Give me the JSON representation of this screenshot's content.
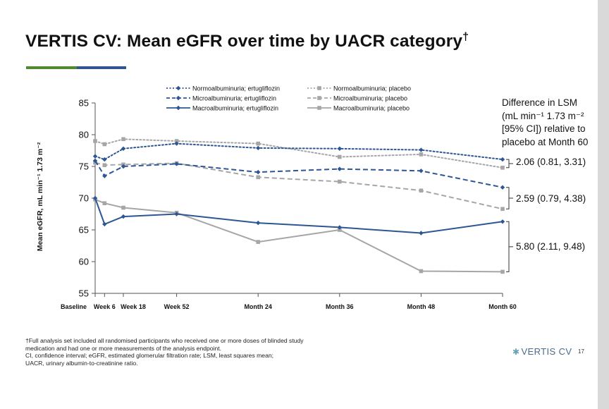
{
  "title": "VERTIS CV: Mean eGFR over time by UACR category",
  "title_mark": "†",
  "chart_data": {
    "type": "line",
    "ylabel": "Mean eGFR, mL min⁻¹ 1.73 m⁻²",
    "xlabel": "",
    "ylim": [
      55,
      85
    ],
    "yticks": [
      55,
      60,
      65,
      70,
      75,
      80,
      85
    ],
    "x_categories": [
      {
        "label": "Baseline",
        "week": 0
      },
      {
        "label": "Week 6",
        "week": 6
      },
      {
        "label": "Week 18",
        "week": 18
      },
      {
        "label": "Week 52",
        "week": 52
      },
      {
        "label": "Month 24",
        "week": 104
      },
      {
        "label": "Month 36",
        "week": 156
      },
      {
        "label": "Month 48",
        "week": 208
      },
      {
        "label": "Month 60",
        "week": 260
      }
    ],
    "series": [
      {
        "name": "Normoalbuminuria; ertugliflozin",
        "style": "dotted",
        "marker": "diamond",
        "color": "#2e5694",
        "values": [
          76.6,
          76.1,
          77.8,
          78.6,
          77.9,
          77.8,
          77.6,
          76.1
        ]
      },
      {
        "name": "Normoalbuminuria; placebo",
        "style": "dotted",
        "marker": "square",
        "color": "#a6a6a6",
        "values": [
          79.0,
          78.5,
          79.3,
          79.0,
          78.6,
          76.5,
          76.9,
          74.8
        ]
      },
      {
        "name": "Microalbuminuria; ertugliflozin",
        "style": "dashed",
        "marker": "diamond",
        "color": "#2e5694",
        "values": [
          75.9,
          73.5,
          75.0,
          75.4,
          74.1,
          74.6,
          74.3,
          71.7
        ]
      },
      {
        "name": "Microalbuminuria; placebo",
        "style": "dashed",
        "marker": "square",
        "color": "#a6a6a6",
        "values": [
          75.6,
          75.2,
          75.3,
          75.5,
          73.3,
          72.6,
          71.2,
          68.3
        ]
      },
      {
        "name": "Macroalbuminuria; ertugliflozin",
        "style": "solid",
        "marker": "diamond",
        "color": "#2e5694",
        "values": [
          70.0,
          65.9,
          67.1,
          67.5,
          66.1,
          65.4,
          64.5,
          66.3
        ]
      },
      {
        "name": "Macroalbuminuria; placebo",
        "style": "solid",
        "marker": "square",
        "color": "#a6a6a6",
        "values": [
          69.8,
          69.2,
          68.5,
          67.7,
          63.1,
          65.0,
          58.5,
          58.4
        ]
      }
    ],
    "legend_position": "top"
  },
  "difference": {
    "title_line1": "Difference in LSM",
    "title_line2": "(mL min⁻¹ 1.73 m⁻²",
    "title_line3": "[95% CI]) relative to",
    "title_line4": "placebo at Month 60",
    "normo": "2.06 (0.81, 3.31)",
    "micro": "2.59 (0.79, 4.38)",
    "macro": "5.80 (2.11, 9.48)"
  },
  "footnotes": {
    "line1": "†Full analysis set included all randomised participants who received one or more doses of blinded study",
    "line2": "medication and had one or more measurements of the analysis endpoint.",
    "line3": "CI, confidence interval; eGFR, estimated glomerular filtration rate; LSM, least squares mean;",
    "line4": "UACR, urinary albumin-to-creatinine ratio."
  },
  "logo_text": "VERTIS CV",
  "page_number": "17",
  "colors": {
    "accent_green": "#4e8b2f",
    "accent_blue": "#2e5694",
    "ertugliflozin": "#2e5694",
    "placebo": "#a6a6a6"
  }
}
